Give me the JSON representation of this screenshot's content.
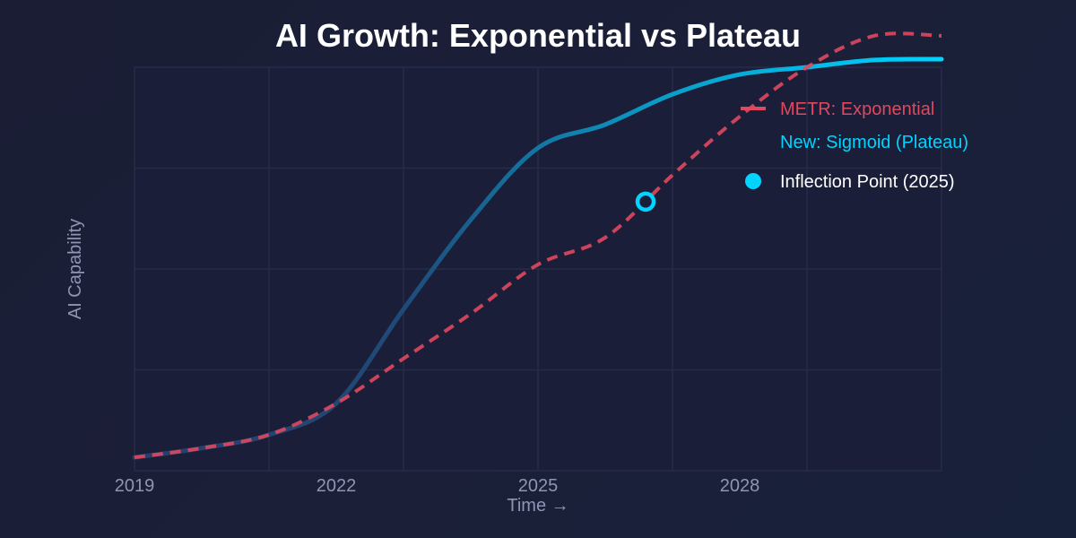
{
  "chart_data": {
    "type": "line",
    "title": "AI Growth: Exponential vs Plateau",
    "xlabel": "Time →",
    "ylabel": "AI Capability",
    "xlim": [
      2019,
      2031
    ],
    "ylim": [
      0,
      100
    ],
    "x_ticks": [
      {
        "value": 2019,
        "label": "2019"
      },
      {
        "value": 2022,
        "label": "2022"
      },
      {
        "value": 2025,
        "label": "2025"
      },
      {
        "value": 2028,
        "label": "2028"
      }
    ],
    "y_ticks": [
      0,
      25,
      50,
      75,
      100
    ],
    "grid": true,
    "legend_position": "top-right",
    "series": [
      {
        "name": "METR: Exponential",
        "style": "dashed",
        "color": "#e0485f",
        "points": [
          [
            2019,
            3.3
          ],
          [
            2020,
            5.6
          ],
          [
            2021,
            8.9
          ],
          [
            2022,
            16.7
          ],
          [
            2023,
            27.8
          ],
          [
            2024,
            38.9
          ],
          [
            2025,
            51.1
          ],
          [
            2026,
            57.8
          ],
          [
            2027,
            73.3
          ],
          [
            2028,
            87.8
          ],
          [
            2029,
            100
          ],
          [
            2030,
            107.8
          ],
          [
            2031,
            107.8
          ]
        ]
      },
      {
        "name": "New: Sigmoid (Plateau)",
        "style": "solid",
        "color": "#00d4ff",
        "points": [
          [
            2019,
            3.3
          ],
          [
            2020,
            5.6
          ],
          [
            2021,
            8.9
          ],
          [
            2022,
            16.7
          ],
          [
            2023,
            40
          ],
          [
            2024,
            62.2
          ],
          [
            2025,
            80
          ],
          [
            2026,
            85.8
          ],
          [
            2027,
            93.3
          ],
          [
            2028,
            98.2
          ],
          [
            2029,
            100
          ],
          [
            2030,
            101.8
          ],
          [
            2031,
            102
          ]
        ]
      }
    ],
    "marker": {
      "label": "Inflection Point (2025)",
      "x": 2026.6,
      "y": 66.7,
      "color": "#00d4ff"
    }
  }
}
